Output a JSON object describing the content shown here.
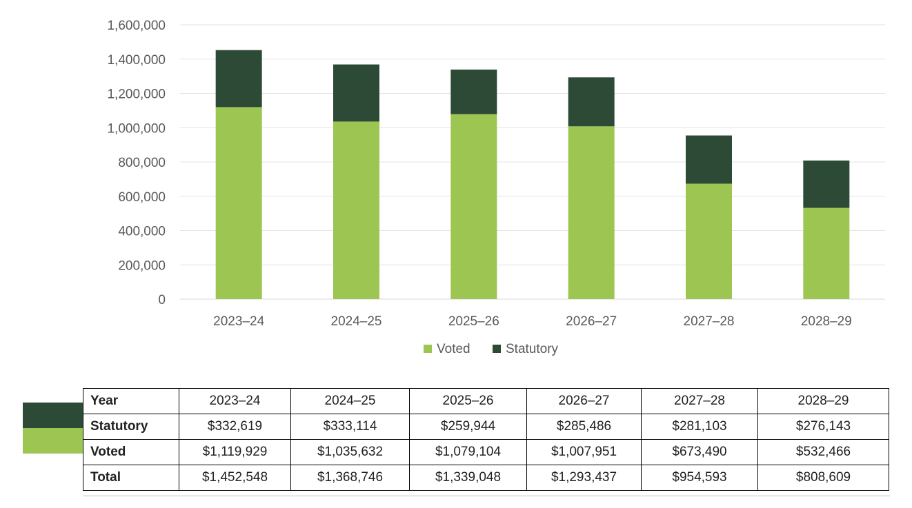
{
  "chart_data": {
    "type": "bar",
    "stacked": true,
    "categories": [
      "2023–24",
      "2024–25",
      "2025–26",
      "2026–27",
      "2027–28",
      "2028–29"
    ],
    "series": [
      {
        "name": "Voted",
        "values": [
          1119929,
          1035632,
          1079104,
          1007951,
          673490,
          532466
        ],
        "color": "#9dc552"
      },
      {
        "name": "Statutory",
        "values": [
          332619,
          333114,
          259944,
          285486,
          281103,
          276143
        ],
        "color": "#2c4a36"
      }
    ],
    "ylim": [
      0,
      1600000
    ],
    "yticks": [
      0,
      200000,
      400000,
      600000,
      800000,
      1000000,
      1200000,
      1400000,
      1600000
    ],
    "ytick_labels": [
      "0",
      "200,000",
      "400,000",
      "600,000",
      "800,000",
      "1,000,000",
      "1,200,000",
      "1,400,000",
      "1,600,000"
    ],
    "grid": true,
    "legend": "bottom"
  },
  "table": {
    "header_label": "Year",
    "years": [
      "2023–24",
      "2024–25",
      "2025–26",
      "2026–27",
      "2027–28",
      "2028–29"
    ],
    "rows": [
      {
        "label": "Statutory",
        "values": [
          "$332,619",
          "$333,114",
          "$259,944",
          "$285,486",
          "$281,103",
          "$276,143"
        ]
      },
      {
        "label": "Voted",
        "values": [
          "$1,119,929",
          "$1,035,632",
          "$1,079,104",
          "$1,007,951",
          "$673,490",
          "$532,466"
        ]
      },
      {
        "label": "Total",
        "values": [
          "$1,452,548",
          "$1,368,746",
          "$1,339,048",
          "$1,293,437",
          "$954,593",
          "$808,609"
        ]
      }
    ]
  }
}
